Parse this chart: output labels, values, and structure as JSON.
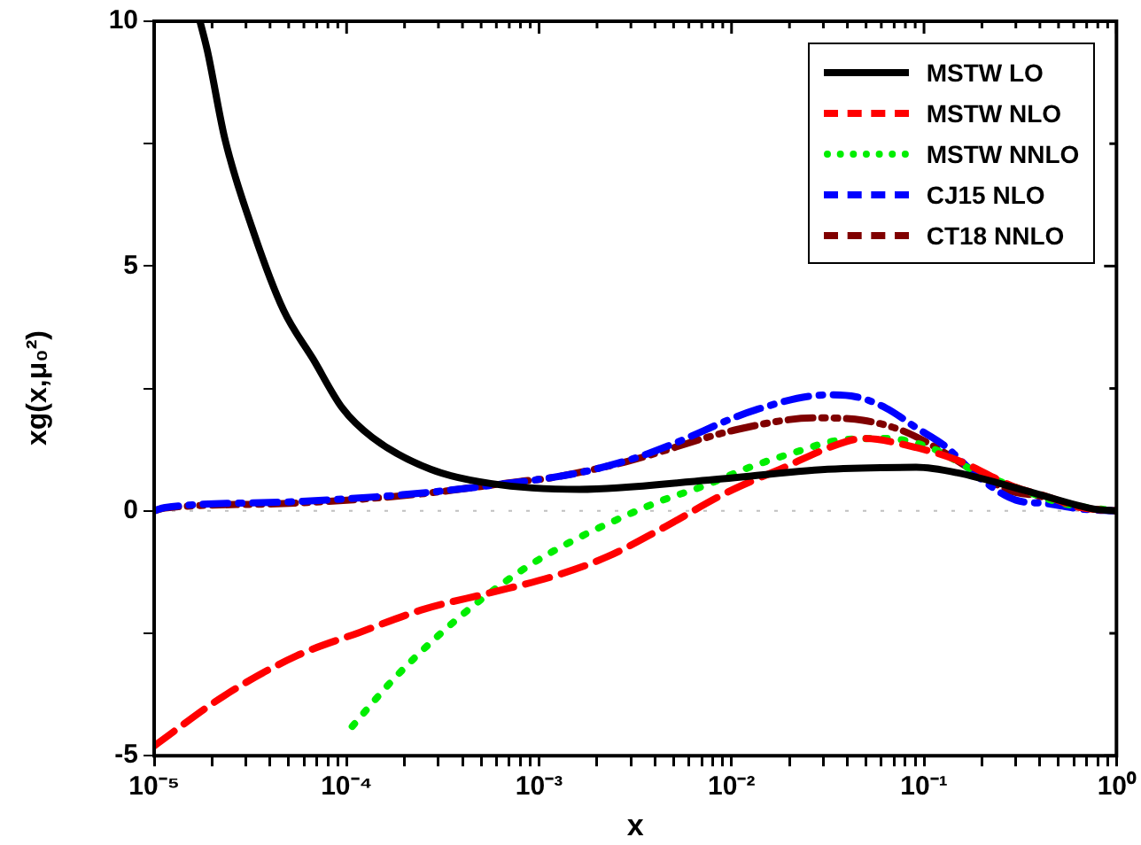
{
  "chart_data": {
    "type": "line",
    "xlabel": "x",
    "ylabel": "xg(x,μ₀²)",
    "log": "x",
    "grid": false,
    "legend": "top right",
    "marker": "none",
    "xlim": [
      1e-05,
      1
    ],
    "ylim": [
      -5,
      10
    ],
    "xticks": [
      {
        "value": 1e-05,
        "label": "10⁻⁵"
      },
      {
        "value": 2e-05,
        "label": null
      },
      {
        "value": 3e-05,
        "label": null
      },
      {
        "value": 4e-05,
        "label": null
      },
      {
        "value": 5e-05,
        "label": null
      },
      {
        "value": 6e-05,
        "label": null
      },
      {
        "value": 7e-05,
        "label": null
      },
      {
        "value": 8e-05,
        "label": null
      },
      {
        "value": 9e-05,
        "label": null
      },
      {
        "value": 0.0001,
        "label": "10⁻⁴"
      },
      {
        "value": 0.0002,
        "label": null
      },
      {
        "value": 0.0003,
        "label": null
      },
      {
        "value": 0.0004,
        "label": null
      },
      {
        "value": 0.0005,
        "label": null
      },
      {
        "value": 0.0006,
        "label": null
      },
      {
        "value": 0.0007,
        "label": null
      },
      {
        "value": 0.0008,
        "label": null
      },
      {
        "value": 0.0009,
        "label": null
      },
      {
        "value": 0.001,
        "label": "10⁻³"
      },
      {
        "value": 0.002,
        "label": null
      },
      {
        "value": 0.003,
        "label": null
      },
      {
        "value": 0.004,
        "label": null
      },
      {
        "value": 0.005,
        "label": null
      },
      {
        "value": 0.006,
        "label": null
      },
      {
        "value": 0.007,
        "label": null
      },
      {
        "value": 0.008,
        "label": null
      },
      {
        "value": 0.009,
        "label": null
      },
      {
        "value": 0.01,
        "label": "10⁻²"
      },
      {
        "value": 0.02,
        "label": null
      },
      {
        "value": 0.03,
        "label": null
      },
      {
        "value": 0.04,
        "label": null
      },
      {
        "value": 0.05,
        "label": null
      },
      {
        "value": 0.06,
        "label": null
      },
      {
        "value": 0.07,
        "label": null
      },
      {
        "value": 0.08,
        "label": null
      },
      {
        "value": 0.09,
        "label": null
      },
      {
        "value": 0.1,
        "label": "10⁻¹"
      },
      {
        "value": 0.2,
        "label": null
      },
      {
        "value": 0.3,
        "label": null
      },
      {
        "value": 0.4,
        "label": null
      },
      {
        "value": 0.5,
        "label": null
      },
      {
        "value": 0.6,
        "label": null
      },
      {
        "value": 0.7,
        "label": null
      },
      {
        "value": 0.8,
        "label": null
      },
      {
        "value": 0.9,
        "label": null
      },
      {
        "value": 1,
        "label": "10⁰"
      }
    ],
    "yticks": [
      -5,
      {
        "value": -2.5,
        "label": null
      },
      0,
      {
        "value": 2.5,
        "label": null
      },
      5,
      {
        "value": 7.5,
        "label": null
      },
      10
    ],
    "ref_lines": [
      {
        "axis": "y",
        "value": 0,
        "color": "#c0c0c0",
        "line_style": "dotted"
      }
    ],
    "series": [
      {
        "name": "MSTW LO",
        "color": "#000000",
        "line_style": "solid",
        "x": [
          1.73e-05,
          1.89e-05,
          2.33e-05,
          3.28e-05,
          4.7e-05,
          6.7e-05,
          9.5e-05,
          0.000136,
          0.000273,
          0.00056,
          0.00162,
          0.0076,
          0.0316,
          0.091,
          0.148,
          0.369,
          0.76,
          1
        ],
        "values": [
          10,
          9.4,
          7.6,
          5.7,
          4.1,
          3.1,
          2.1,
          1.5,
          0.85,
          0.56,
          0.44,
          0.63,
          0.85,
          0.89,
          0.78,
          0.37,
          0.04,
          0
        ]
      },
      {
        "name": "MSTW NLO",
        "color": "#ff0000",
        "line_style": "dashed",
        "x": [
          1e-05,
          2.3e-05,
          5.5e-05,
          0.000117,
          0.000256,
          0.00056,
          0.0012,
          0.00228,
          0.0043,
          0.0094,
          0.0178,
          0.039,
          0.0482,
          0.0837,
          0.148,
          0.3,
          0.43,
          0.65,
          1
        ],
        "values": [
          -4.8,
          -3.78,
          -2.96,
          -2.48,
          -2.0,
          -1.67,
          -1.33,
          -0.93,
          -0.37,
          0.37,
          0.85,
          1.41,
          1.48,
          1.33,
          1.04,
          0.48,
          0.3,
          0.07,
          0
        ]
      },
      {
        "name": "MSTW NNLO",
        "color": "#00ee00",
        "line_style": "dotted",
        "x": [
          0.000107,
          0.000175,
          0.000297,
          0.0005,
          0.00086,
          0.00146,
          0.0025,
          0.0042,
          0.0073,
          0.0124,
          0.0211,
          0.0358,
          0.0635,
          0.113,
          0.176,
          0.3,
          0.53,
          1
        ],
        "values": [
          -4.4,
          -3.44,
          -2.56,
          -1.81,
          -1.15,
          -0.63,
          -0.19,
          0.19,
          0.52,
          0.89,
          1.19,
          1.44,
          1.48,
          1.26,
          0.85,
          0.48,
          0.15,
          0
        ]
      },
      {
        "name": "CJ15 NLO",
        "color": "#0000ff",
        "line_style": "dashdot",
        "x": [
          1e-05,
          1.14e-05,
          4.7e-05,
          0.000195,
          0.00056,
          0.00162,
          0.00327,
          0.0047,
          0.0135,
          0.0316,
          0.0443,
          0.0635,
          0.091,
          0.128,
          0.195,
          0.3,
          0.43,
          0.65,
          1
        ],
        "values": [
          0,
          0.07,
          0.18,
          0.33,
          0.52,
          0.78,
          1.1,
          1.33,
          2.07,
          2.37,
          2.33,
          2.1,
          1.7,
          1.33,
          0.67,
          0.22,
          0.15,
          0.04,
          0
        ]
      },
      {
        "name": "CT18 NNLO",
        "color": "#800000",
        "line_style": "dashdotdot",
        "x": [
          1e-05,
          1.14e-05,
          4.7e-05,
          0.00022,
          0.00079,
          0.00113,
          0.0028,
          0.0109,
          0.0272,
          0.0482,
          0.0736,
          0.1035,
          0.195,
          0.28,
          0.4,
          0.65,
          1
        ],
        "values": [
          0,
          0.06,
          0.15,
          0.33,
          0.6,
          0.67,
          1.0,
          1.67,
          1.9,
          1.85,
          1.67,
          1.4,
          0.74,
          0.41,
          0.3,
          0.07,
          0
        ]
      }
    ]
  }
}
